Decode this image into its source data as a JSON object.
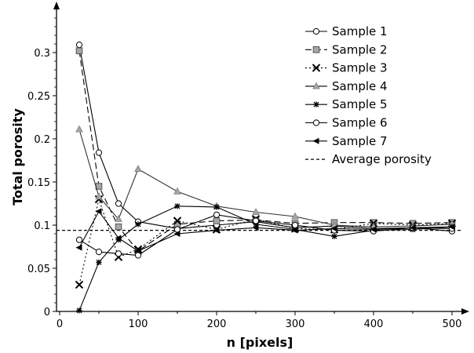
{
  "chart_data": {
    "type": "line",
    "xlabel": "n [pixels]",
    "ylabel": "Total porosity",
    "xlim": [
      0,
      510
    ],
    "ylim": [
      0,
      0.35
    ],
    "x_ticks": [
      "0",
      "100",
      "200",
      "300",
      "400",
      "500"
    ],
    "y_ticks": [
      "0",
      "0.05",
      "0.1",
      "0.15",
      "0.2",
      "0.25",
      "0.3"
    ],
    "legend_position": "top-right",
    "grid": false,
    "x": [
      25,
      50,
      75,
      100,
      150,
      200,
      250,
      300,
      350,
      400,
      450,
      500
    ],
    "series": [
      {
        "name": "Sample 1",
        "marker": "circle-open",
        "dash": "solid",
        "values": [
          0.309,
          0.184,
          0.125,
          0.104,
          0.096,
          0.1,
          0.104,
          0.097,
          0.099,
          0.096,
          0.097,
          0.093
        ]
      },
      {
        "name": "Sample 2",
        "marker": "square-gray",
        "dash": "long-dash",
        "values": [
          0.302,
          0.145,
          0.098,
          0.07,
          0.101,
          0.105,
          0.106,
          0.102,
          0.103,
          0.103,
          0.102,
          0.103
        ]
      },
      {
        "name": "Sample 3",
        "marker": "x",
        "dash": "dotted",
        "values": [
          0.031,
          0.13,
          0.063,
          0.072,
          0.105,
          0.095,
          0.107,
          0.096,
          0.095,
          0.102,
          0.1,
          0.102
        ]
      },
      {
        "name": "Sample 4",
        "marker": "triangle-gray",
        "dash": "solid",
        "values": [
          0.211,
          0.133,
          0.107,
          0.165,
          0.139,
          0.122,
          0.115,
          0.11,
          0.1,
          0.098,
          0.099,
          0.101
        ]
      },
      {
        "name": "Sample 5",
        "marker": "asterisk",
        "dash": "solid",
        "values": [
          0.001,
          0.057,
          0.083,
          0.101,
          0.122,
          0.121,
          0.101,
          0.095,
          0.087,
          0.094,
          0.095,
          0.098
        ]
      },
      {
        "name": "Sample 6",
        "marker": "circle-open",
        "dash": "solid",
        "values": [
          0.083,
          0.069,
          0.067,
          0.065,
          0.095,
          0.112,
          0.105,
          0.1,
          0.094,
          0.093,
          0.097,
          0.096
        ]
      },
      {
        "name": "Sample 7",
        "marker": "triangle-left-filled",
        "dash": "solid",
        "values": [
          0.074,
          0.116,
          0.085,
          0.07,
          0.09,
          0.094,
          0.097,
          0.094,
          0.096,
          0.095,
          0.097,
          0.098
        ]
      }
    ],
    "reference_line": {
      "name": "Average porosity",
      "value": 0.094,
      "dash": "short-dash"
    }
  }
}
